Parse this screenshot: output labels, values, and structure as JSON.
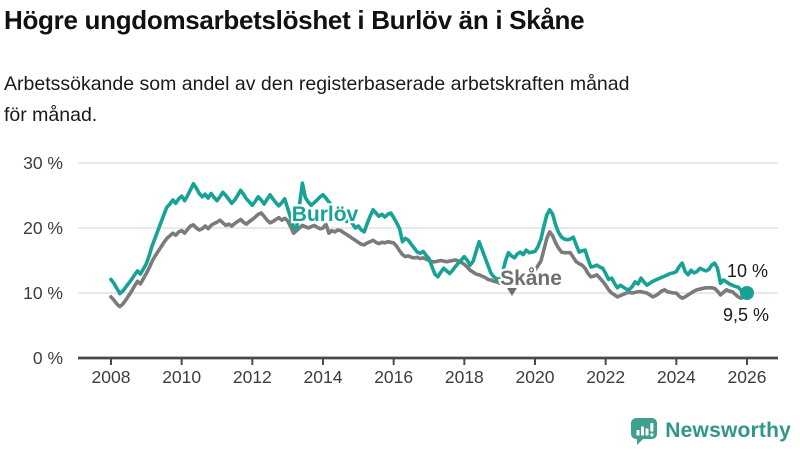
{
  "header": {
    "title": "Högre ungdomsarbetslöshet i Burlöv än i Skåne",
    "subtitle_line1": "Arbetssökande som andel av den registerbaserade arbetskraften månad",
    "subtitle_line2": "för månad."
  },
  "footer": {
    "brand": "Newsworthy"
  },
  "colors": {
    "accent_teal": "#17a296",
    "line_gray": "#7b7b7b",
    "logo_teal": "#2e968a",
    "axis_text": "#3d3d3d",
    "gridline": "#e1e1e1",
    "axis_line": "#4a4a4a",
    "annotation_text": "#1a1a1a"
  },
  "icons": {
    "logo_icon": "newsworthy-speech-bubble-bar-chart-icon"
  },
  "chart_data": {
    "type": "line",
    "title": "Högre ungdomsarbetslöshet i Burlöv än i Skåne",
    "x_start": "2008-01",
    "x_end": "2026-01",
    "x_interval": "monthly",
    "x_ticks": [
      2008,
      2010,
      2012,
      2014,
      2016,
      2018,
      2020,
      2022,
      2024,
      2026
    ],
    "y_ticks": [
      0,
      10,
      20,
      30
    ],
    "y_tick_suffix": " %",
    "ylim": [
      0,
      31
    ],
    "grid": "horizontal",
    "legend_position": "inline-labels",
    "series": [
      {
        "name": "Burlöv",
        "slug": "burlov",
        "color": "#17a296",
        "label_color": "#17a296",
        "end_value_label": "10 %",
        "end_dot": true,
        "label_arrow": false,
        "values": [
          12.1,
          11.5,
          10.7,
          9.9,
          10.3,
          10.9,
          11.5,
          12.1,
          12.8,
          13.4,
          12.9,
          13.7,
          14.5,
          15.8,
          17.3,
          18.5,
          19.7,
          20.9,
          22.1,
          23.2,
          23.7,
          24.3,
          23.8,
          24.5,
          24.9,
          24.2,
          25.0,
          25.9,
          26.8,
          26.1,
          25.3,
          24.8,
          25.2,
          24.6,
          25.3,
          24.7,
          24.2,
          24.8,
          25.5,
          25.0,
          24.4,
          23.8,
          24.3,
          25.0,
          25.8,
          25.2,
          24.5,
          24.0,
          23.5,
          24.1,
          24.8,
          24.3,
          23.7,
          24.4,
          25.1,
          24.5,
          23.9,
          23.4,
          23.9,
          24.5,
          23.0,
          21.6,
          20.1,
          19.8,
          23.4,
          26.9,
          24.7,
          24.0,
          23.5,
          23.9,
          24.3,
          24.8,
          25.1,
          24.6,
          24.0,
          23.5,
          22.9,
          23.3,
          22.5,
          21.7,
          21.0,
          21.5,
          20.7,
          20.0,
          20.3,
          19.7,
          19.4,
          20.7,
          21.8,
          22.8,
          22.3,
          21.8,
          22.1,
          21.7,
          22.1,
          22.3,
          21.6,
          20.8,
          19.9,
          17.9,
          18.4,
          18.1,
          17.5,
          16.9,
          16.3,
          16.1,
          16.4,
          15.8,
          15.3,
          14.1,
          12.9,
          12.5,
          13.2,
          13.8,
          13.4,
          13.0,
          13.5,
          14.1,
          14.6,
          15.1,
          15.6,
          15.0,
          14.3,
          14.9,
          16.4,
          17.9,
          16.7,
          15.5,
          14.3,
          13.1,
          12.5,
          12.2,
          12.0,
          13.2,
          15.0,
          16.2,
          15.7,
          15.4,
          16.0,
          16.3,
          15.9,
          16.6,
          16.2,
          16.3,
          16.4,
          17.1,
          18.3,
          20.2,
          22.0,
          22.8,
          22.1,
          20.5,
          19.3,
          18.6,
          18.3,
          18.2,
          18.3,
          18.6,
          17.4,
          16.3,
          16.5,
          16.6,
          15.2,
          14.0,
          14.1,
          14.3,
          14.0,
          13.8,
          13.0,
          12.1,
          12.3,
          11.5,
          10.8,
          11.2,
          10.9,
          10.6,
          10.5,
          11.0,
          11.7,
          11.4,
          12.3,
          11.7,
          11.2,
          11.5,
          11.8,
          12.0,
          12.2,
          12.4,
          12.6,
          12.8,
          13.0,
          13.1,
          13.3,
          14.1,
          14.6,
          13.3,
          12.8,
          13.5,
          13.1,
          13.3,
          13.8,
          13.6,
          13.4,
          13.6,
          14.3,
          14.6,
          13.8,
          11.5,
          12.0,
          11.7,
          11.4,
          11.2,
          11.0,
          10.9,
          10.4,
          10.1,
          10.0
        ]
      },
      {
        "name": "Skåne",
        "slug": "skane",
        "color": "#7b7b7b",
        "label_color": "#6f6f6f",
        "end_value_label": "9,5 %",
        "end_dot": false,
        "label_arrow": true,
        "values": [
          9.4,
          8.9,
          8.3,
          7.9,
          8.3,
          8.9,
          9.6,
          10.3,
          11.1,
          11.8,
          11.4,
          12.2,
          13.0,
          13.9,
          14.9,
          15.7,
          16.4,
          17.1,
          17.8,
          18.4,
          18.8,
          19.2,
          18.9,
          19.4,
          19.6,
          19.2,
          19.8,
          20.3,
          20.5,
          20.0,
          19.7,
          19.9,
          20.3,
          19.9,
          20.4,
          20.7,
          20.9,
          21.2,
          20.8,
          20.4,
          20.6,
          20.3,
          20.7,
          21.0,
          21.3,
          20.9,
          20.6,
          21.0,
          21.3,
          21.7,
          22.1,
          22.3,
          21.8,
          21.2,
          20.8,
          21.0,
          21.3,
          21.6,
          21.2,
          21.5,
          21.1,
          20.2,
          19.2,
          19.6,
          20.0,
          20.4,
          20.2,
          20.0,
          20.2,
          20.4,
          20.1,
          19.9,
          20.0,
          20.6,
          19.2,
          19.6,
          19.4,
          19.7,
          19.6,
          19.3,
          19.0,
          18.7,
          18.4,
          18.1,
          17.8,
          17.5,
          17.4,
          17.7,
          17.9,
          18.1,
          17.8,
          17.6,
          17.8,
          17.7,
          17.9,
          17.8,
          17.7,
          17.2,
          16.5,
          15.9,
          15.6,
          15.7,
          15.5,
          15.4,
          15.5,
          15.3,
          15.4,
          15.2,
          15.0,
          14.8,
          14.8,
          14.9,
          15.0,
          14.9,
          14.8,
          14.9,
          15.0,
          15.1,
          14.9,
          14.7,
          14.4,
          14.0,
          13.5,
          13.2,
          12.9,
          12.8,
          12.6,
          12.4,
          12.1,
          12.0,
          11.8,
          11.7,
          11.5,
          11.6,
          11.8,
          11.9,
          12.0,
          12.1,
          12.0,
          12.2,
          12.4,
          12.6,
          12.9,
          13.2,
          13.5,
          14.2,
          14.9,
          16.6,
          18.4,
          19.4,
          18.8,
          17.7,
          16.9,
          16.3,
          16.2,
          16.2,
          16.2,
          15.5,
          14.8,
          14.5,
          14.3,
          13.8,
          13.0,
          12.5,
          12.6,
          12.8,
          12.3,
          11.8,
          11.2,
          10.5,
          10.0,
          9.7,
          9.4,
          9.6,
          9.8,
          10.0,
          10.1,
          10.0,
          10.1,
          10.2,
          10.2,
          10.1,
          10.0,
          9.7,
          9.4,
          9.6,
          9.9,
          10.3,
          10.5,
          10.2,
          10.1,
          10.0,
          10.0,
          9.5,
          9.2,
          9.4,
          9.7,
          10.0,
          10.3,
          10.5,
          10.6,
          10.7,
          10.8,
          10.8,
          10.8,
          10.7,
          10.3,
          9.7,
          10.1,
          10.5,
          10.3,
          10.2,
          9.8,
          9.4,
          9.2,
          9.4,
          9.5
        ]
      }
    ]
  }
}
